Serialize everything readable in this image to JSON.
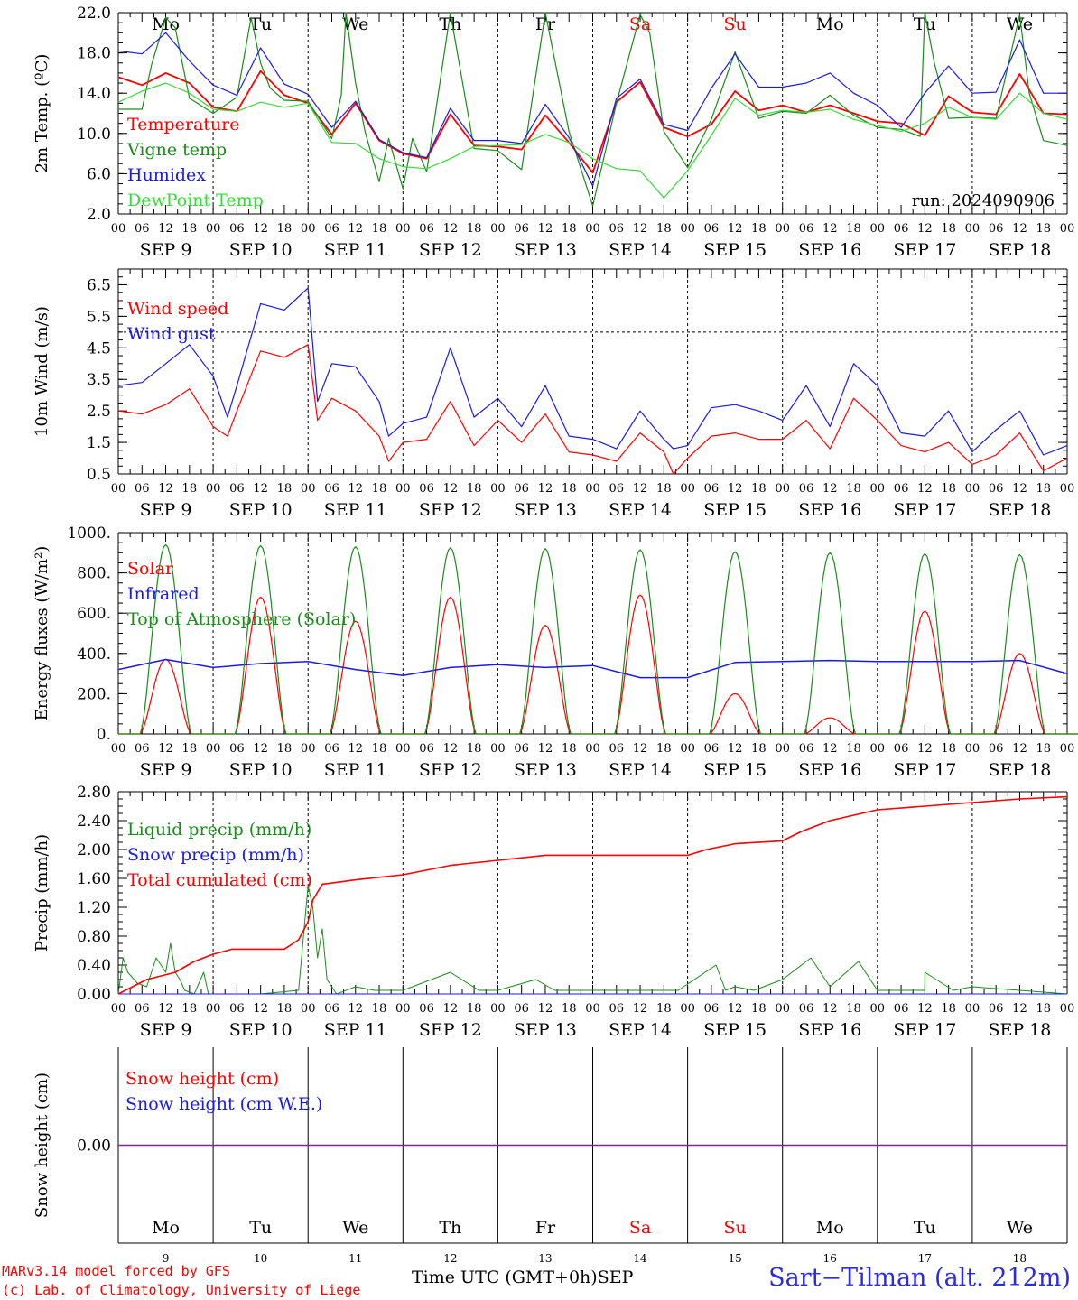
{
  "run_label": "run: 2024090906",
  "days": {
    "names": [
      "Mo",
      "Tu",
      "We",
      "Th",
      "Fr",
      "Sa",
      "Su",
      "Mo",
      "Tu",
      "We"
    ],
    "weekend_flags": [
      false,
      false,
      false,
      false,
      false,
      true,
      true,
      false,
      false,
      false
    ],
    "date_labels": [
      "SEP  9",
      "SEP 10",
      "SEP 11",
      "SEP 12",
      "SEP 13",
      "SEP 14",
      "SEP 15",
      "SEP 16",
      "SEP 17",
      "SEP 18"
    ],
    "day_numbers": [
      "9",
      "10",
      "11",
      "12",
      "13",
      "14",
      "15",
      "16",
      "17",
      "18"
    ],
    "hour_ticks": [
      "00",
      "06",
      "12",
      "18"
    ],
    "final_hour_tick": "00"
  },
  "footer": {
    "model": "MARv3.14 model forced by GFS",
    "lab": "(c) Lab. of Climatology, University of Liege",
    "xaxis_title": "Time UTC (GMT+0h)",
    "month": "SEP",
    "station": "Sart−Tilman (alt. 212m)"
  },
  "colors": {
    "red": "#ff0000",
    "green": "#1a8c1a",
    "blue": "#1a1ae6",
    "lightgreen": "#33dd33",
    "purple": "#7a2a8a",
    "weekend": "#ff0000",
    "axis": "#000000"
  },
  "chart_data": [
    {
      "type": "line",
      "ylabel": "2m Temp. (ºC)",
      "ylim": [
        2,
        22
      ],
      "yticks": [
        "2.0",
        "6.0",
        "10.0",
        "14.0",
        "18.0",
        "22.0"
      ],
      "x_unit": "days since SEP 9 00 UTC",
      "grid": "vertical dotted lines at day boundaries",
      "legend_position": "left",
      "series": [
        {
          "name": "Temperature",
          "color": "red",
          "x": [
            0,
            0.25,
            0.5,
            0.75,
            1,
            1.25,
            1.5,
            1.75,
            2,
            2.25,
            2.5,
            2.75,
            3,
            3.25,
            3.5,
            3.75,
            4,
            4.25,
            4.5,
            4.75,
            5,
            5.25,
            5.5,
            5.75,
            6,
            6.25,
            6.5,
            6.75,
            7,
            7.25,
            7.5,
            7.75,
            8,
            8.25,
            8.5,
            8.75,
            9,
            9.25,
            9.5,
            9.75,
            10
          ],
          "y": [
            15.6,
            14.8,
            16.0,
            15.0,
            12.6,
            12.2,
            16.2,
            13.8,
            13.0,
            9.9,
            13.0,
            9.3,
            8.0,
            7.5,
            11.9,
            8.8,
            8.7,
            8.4,
            11.8,
            9.1,
            6.1,
            13.1,
            15.1,
            10.6,
            9.7,
            10.9,
            14.2,
            12.3,
            12.8,
            12.1,
            12.8,
            12.0,
            11.2,
            11.0,
            9.8,
            13.7,
            12.1,
            11.9,
            15.9,
            12.0,
            11.9
          ]
        },
        {
          "name": "Vigne temp",
          "color": "green",
          "x": [
            0,
            0.25,
            0.35,
            0.5,
            0.6,
            0.75,
            1,
            1.25,
            1.4,
            1.5,
            1.6,
            1.75,
            2,
            2.25,
            2.35,
            2.4,
            2.5,
            2.6,
            2.75,
            2.85,
            3,
            3.1,
            3.25,
            3.5,
            3.75,
            4,
            4.25,
            4.5,
            4.75,
            5,
            5.25,
            5.5,
            5.6,
            5.75,
            6,
            6.25,
            6.5,
            6.75,
            7,
            7.25,
            7.5,
            7.75,
            8,
            8.25,
            8.45,
            8.5,
            8.6,
            8.75,
            9,
            9.25,
            9.5,
            9.6,
            9.75,
            10
          ],
          "y": [
            12.4,
            12.4,
            16.8,
            21.5,
            20.5,
            13.5,
            12.0,
            13.6,
            21.5,
            17.0,
            14.5,
            13.3,
            13.2,
            9.5,
            13.8,
            22.0,
            15.0,
            10.2,
            5.2,
            9.5,
            4.5,
            9.5,
            6.2,
            22.0,
            8.5,
            8.3,
            6.4,
            22.0,
            10.2,
            2.8,
            13.0,
            21.8,
            20.0,
            10.2,
            6.6,
            11.4,
            18.1,
            11.5,
            12.2,
            12.0,
            13.8,
            11.8,
            10.6,
            10.4,
            9.7,
            22.0,
            17.0,
            11.5,
            11.6,
            11.5,
            21.8,
            14.0,
            9.3,
            8.8
          ]
        },
        {
          "name": "Humidex",
          "color": "blue",
          "x": [
            0,
            0.25,
            0.5,
            0.75,
            1,
            1.25,
            1.5,
            1.75,
            2,
            2.25,
            2.5,
            2.75,
            3,
            3.25,
            3.5,
            3.75,
            4,
            4.25,
            4.5,
            4.75,
            5,
            5.25,
            5.5,
            5.75,
            6,
            6.25,
            6.5,
            6.75,
            7,
            7.25,
            7.5,
            7.75,
            8,
            8.25,
            8.5,
            8.75,
            9,
            9.25,
            9.5,
            9.75,
            10
          ],
          "y": [
            18.2,
            17.9,
            20.0,
            17.2,
            14.8,
            13.8,
            18.5,
            14.9,
            13.9,
            10.6,
            13.2,
            9.4,
            8.1,
            7.6,
            12.5,
            9.3,
            9.3,
            9.0,
            12.9,
            9.6,
            4.8,
            13.5,
            15.4,
            10.9,
            10.3,
            14.5,
            17.9,
            14.6,
            14.6,
            15.0,
            16.0,
            14.0,
            12.8,
            10.6,
            14.0,
            16.7,
            14.0,
            14.1,
            19.3,
            14.0,
            14.0
          ]
        },
        {
          "name": "DewPoint Temp",
          "color": "lightgreen",
          "x": [
            0,
            0.25,
            0.5,
            0.75,
            1,
            1.25,
            1.5,
            1.75,
            2,
            2.25,
            2.5,
            2.75,
            3,
            3.25,
            3.5,
            3.75,
            4,
            4.25,
            4.5,
            4.75,
            5,
            5.25,
            5.5,
            5.75,
            6,
            6.25,
            6.5,
            6.75,
            7,
            7.25,
            7.5,
            7.75,
            8,
            8.25,
            8.5,
            8.75,
            9,
            9.25,
            9.5,
            9.75,
            10
          ],
          "y": [
            13.1,
            14.2,
            15.0,
            14.0,
            12.4,
            12.2,
            13.1,
            12.6,
            13.0,
            9.1,
            9.0,
            7.5,
            6.7,
            6.5,
            7.5,
            8.7,
            8.8,
            8.9,
            9.9,
            9.1,
            7.5,
            6.5,
            6.3,
            3.6,
            6.3,
            9.8,
            13.5,
            11.8,
            12.3,
            12.1,
            12.4,
            11.4,
            10.8,
            10.2,
            11.0,
            12.6,
            11.6,
            11.4,
            14.0,
            12.0,
            11.4
          ]
        }
      ]
    },
    {
      "type": "line",
      "ylabel": "10m Wind (m/s)",
      "ylim": [
        0.5,
        7.0
      ],
      "yticks": [
        "0.5",
        "1.5",
        "2.5",
        "3.5",
        "4.5",
        "5.5",
        "6.5"
      ],
      "reference_line": 5.0,
      "x_unit": "days since SEP 9 00 UTC",
      "grid": "vertical dotted lines at day boundaries",
      "legend_position": "left",
      "series": [
        {
          "name": "Wind speed",
          "color": "red",
          "x": [
            0,
            0.25,
            0.5,
            0.75,
            1,
            1.15,
            1.25,
            1.5,
            1.75,
            2,
            2.1,
            2.25,
            2.5,
            2.75,
            2.85,
            3,
            3.25,
            3.5,
            3.75,
            4,
            4.25,
            4.5,
            4.75,
            5,
            5.25,
            5.5,
            5.75,
            5.85,
            6,
            6.25,
            6.5,
            6.75,
            7,
            7.25,
            7.5,
            7.75,
            8,
            8.25,
            8.5,
            8.75,
            9,
            9.25,
            9.5,
            9.75,
            10
          ],
          "y": [
            2.5,
            2.4,
            2.7,
            3.2,
            2.0,
            1.7,
            2.5,
            4.4,
            4.2,
            4.6,
            2.2,
            2.9,
            2.5,
            1.7,
            0.9,
            1.5,
            1.6,
            2.8,
            1.4,
            2.2,
            1.5,
            2.4,
            1.2,
            1.1,
            0.9,
            1.8,
            1.2,
            0.5,
            1.0,
            1.7,
            1.8,
            1.6,
            1.6,
            2.2,
            1.3,
            2.9,
            2.2,
            1.4,
            1.2,
            1.5,
            0.8,
            1.1,
            1.8,
            0.6,
            1.0
          ]
        },
        {
          "name": "Wind gust",
          "color": "blue",
          "x": [
            0,
            0.25,
            0.5,
            0.75,
            1,
            1.15,
            1.25,
            1.5,
            1.75,
            2,
            2.1,
            2.25,
            2.5,
            2.75,
            2.85,
            3,
            3.25,
            3.5,
            3.75,
            4,
            4.25,
            4.5,
            4.75,
            5,
            5.25,
            5.5,
            5.75,
            5.85,
            6,
            6.25,
            6.5,
            6.75,
            7,
            7.25,
            7.5,
            7.75,
            8,
            8.25,
            8.5,
            8.75,
            9,
            9.25,
            9.5,
            9.75,
            10
          ],
          "y": [
            3.3,
            3.4,
            4.0,
            4.6,
            3.6,
            2.3,
            3.3,
            5.9,
            5.7,
            6.4,
            2.8,
            4.0,
            3.9,
            2.8,
            1.7,
            2.1,
            2.3,
            4.5,
            2.3,
            2.9,
            2.0,
            3.3,
            1.7,
            1.6,
            1.3,
            2.5,
            1.6,
            1.3,
            1.4,
            2.6,
            2.7,
            2.5,
            2.2,
            3.3,
            2.0,
            4.0,
            3.3,
            1.8,
            1.7,
            2.5,
            1.2,
            1.9,
            2.5,
            1.1,
            1.4
          ]
        }
      ]
    },
    {
      "type": "line",
      "ylabel": "Energy fluxes (W/m²)",
      "ylim": [
        0,
        1000
      ],
      "yticks": [
        "0.",
        "200.",
        "400.",
        "600.",
        "800.",
        "1000."
      ],
      "x_unit": "days since SEP 9 00 UTC",
      "grid": "vertical dotted lines at day boundaries",
      "legend_position": "left",
      "solar_window_days": [
        0.23,
        0.77
      ],
      "series": [
        {
          "name": "Solar",
          "color": "red",
          "daily_peak": [
            370,
            680,
            560,
            680,
            540,
            690,
            200,
            80,
            610,
            400
          ]
        },
        {
          "name": "Infrared",
          "color": "blue",
          "x": [
            0,
            0.5,
            1,
            1.5,
            2,
            2.5,
            3,
            3.5,
            4,
            4.5,
            5,
            5.5,
            6,
            6.5,
            7,
            7.5,
            8,
            8.5,
            9,
            9.5,
            10
          ],
          "y": [
            320,
            370,
            330,
            350,
            360,
            320,
            290,
            330,
            345,
            330,
            340,
            280,
            280,
            355,
            360,
            365,
            360,
            360,
            360,
            365,
            300
          ]
        },
        {
          "name": "Top of Atmosphere (Solar)",
          "color": "green",
          "daily_peak": [
            940,
            935,
            930,
            925,
            920,
            915,
            905,
            900,
            895,
            890
          ]
        }
      ]
    },
    {
      "type": "line",
      "ylabel": "Precip (mm/h)",
      "ylim": [
        0,
        2.8
      ],
      "yticks": [
        "0.00",
        "0.40",
        "0.80",
        "1.20",
        "1.60",
        "2.00",
        "2.40",
        "2.80"
      ],
      "x_unit": "days since SEP 9 00 UTC",
      "grid": "vertical dotted lines at day boundaries",
      "legend_position": "left",
      "series": [
        {
          "name": "Liquid precip (mm/h)",
          "color": "green",
          "x": [
            0,
            0.05,
            0.1,
            0.2,
            0.3,
            0.4,
            0.5,
            0.55,
            0.6,
            0.65,
            0.7,
            0.8,
            0.9,
            0.95,
            1.0,
            1.1,
            1.5,
            1.9,
            2.0,
            2.05,
            2.1,
            2.15,
            2.2,
            2.3,
            2.5,
            2.7,
            3.0,
            3.5,
            3.8,
            4.0,
            4.4,
            4.6,
            5.0,
            5.9,
            6.3,
            6.4,
            6.5,
            6.7,
            7.0,
            7.3,
            7.5,
            7.8,
            8.0,
            8.5,
            8.5,
            8.8,
            9.0,
            10.0
          ],
          "y": [
            0,
            0.5,
            0.3,
            0.15,
            0.1,
            0.5,
            0.3,
            0.7,
            0.3,
            0.2,
            0.05,
            0,
            0.3,
            0,
            0,
            0,
            0,
            0.05,
            1.5,
            1.2,
            0.5,
            0.9,
            0.2,
            0,
            0.1,
            0.05,
            0.05,
            0.3,
            0.05,
            0.05,
            0.2,
            0.05,
            0.05,
            0.05,
            0.4,
            0.05,
            0.1,
            0.05,
            0.2,
            0.5,
            0.1,
            0.45,
            0.05,
            0.05,
            0.3,
            0.05,
            0.1,
            0
          ]
        },
        {
          "name": "Snow precip (mm/h)",
          "color": "blue",
          "x": [
            0,
            10
          ],
          "y": [
            0,
            0
          ]
        },
        {
          "name": "Total cumulated (cm)",
          "color": "red",
          "x": [
            0,
            0.3,
            0.6,
            0.8,
            1.0,
            1.2,
            1.5,
            1.75,
            1.9,
            2.0,
            2.05,
            2.15,
            2.5,
            3.0,
            3.5,
            4.0,
            4.5,
            5.0,
            5.5,
            6.0,
            6.2,
            6.5,
            7.0,
            7.2,
            7.5,
            8.0,
            8.5,
            9.0,
            9.5,
            10.0
          ],
          "y": [
            0,
            0.2,
            0.3,
            0.45,
            0.55,
            0.62,
            0.62,
            0.62,
            0.75,
            1.0,
            1.3,
            1.52,
            1.58,
            1.65,
            1.78,
            1.85,
            1.92,
            1.92,
            1.92,
            1.92,
            2.0,
            2.08,
            2.12,
            2.25,
            2.4,
            2.55,
            2.6,
            2.65,
            2.7,
            2.73
          ]
        }
      ]
    },
    {
      "type": "line",
      "ylabel": "Snow height (cm)",
      "ylim": [
        -1,
        1
      ],
      "yticks": [
        "0.00"
      ],
      "x_unit": "days since SEP 9 00 UTC",
      "grid": "vertical lines at day boundaries",
      "legend_position": "left",
      "series": [
        {
          "name": "Snow height (cm)",
          "color": "red",
          "x": [
            0,
            10
          ],
          "y": [
            0,
            0
          ]
        },
        {
          "name": "Snow height (cm W.E.)",
          "color": "blue",
          "x": [
            0,
            10
          ],
          "y": [
            0,
            0
          ]
        }
      ]
    }
  ]
}
